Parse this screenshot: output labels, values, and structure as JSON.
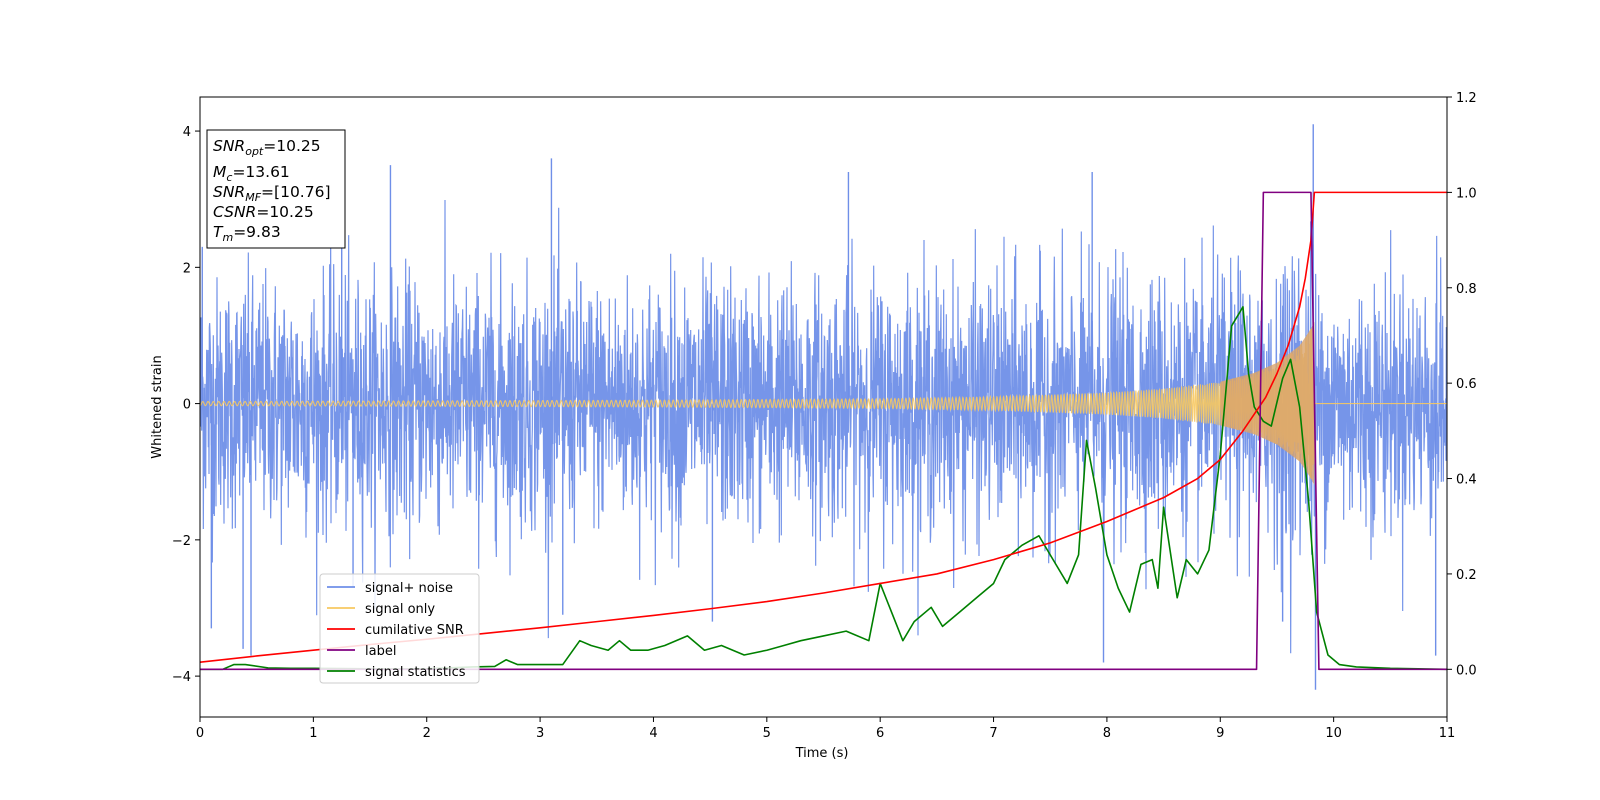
{
  "chart_data": {
    "type": "line",
    "xlabel": "Time (s)",
    "ylabel": "Whitened strain",
    "xlim": [
      0,
      11
    ],
    "ylim_left": [
      -4.6,
      4.5
    ],
    "ylim_right": [
      -0.1,
      1.2
    ],
    "x_ticks": [
      0,
      1,
      2,
      3,
      4,
      5,
      6,
      7,
      8,
      9,
      10,
      11
    ],
    "y_left_ticks": [
      4,
      2,
      0,
      -2,
      -4
    ],
    "y_left_tick_labels": [
      "4",
      "2",
      "0",
      "−2",
      "−4"
    ],
    "y_right_ticks": [
      1.2,
      1.0,
      0.8,
      0.6,
      0.4,
      0.2,
      0.0
    ],
    "y_right_tick_labels": [
      "1.2",
      "1.0",
      "0.8",
      "0.6",
      "0.4",
      "0.2",
      "0.0"
    ],
    "grid": false,
    "legend_position": "lower-left",
    "info_box": [
      {
        "sym": "SNR",
        "sub": "opt",
        "val": "=10.25"
      },
      {
        "sym": "M",
        "sub": "c",
        "val": "=13.61"
      },
      {
        "sym": "SNR",
        "sub": "MF",
        "val": "=[10.76]"
      },
      {
        "sym": "CSNR",
        "sub": "",
        "val": "=10.25"
      },
      {
        "sym": "T",
        "sub": "m",
        "val": "=9.83"
      }
    ],
    "series": [
      {
        "name": "signal+ noise",
        "axis": "left",
        "color": "#6f8fe8",
        "kind": "noise",
        "noise_sigma": 0.9,
        "noise_extremes": [
          [
            0.02,
            2.3
          ],
          [
            0.1,
            -3.3
          ],
          [
            0.38,
            -3.6
          ],
          [
            0.45,
            -3.7
          ],
          [
            1.25,
            2.9
          ],
          [
            1.35,
            -2.7
          ],
          [
            1.68,
            3.5
          ],
          [
            3.1,
            3.6
          ],
          [
            3.2,
            -3.1
          ],
          [
            4.52,
            -3.2
          ],
          [
            5.72,
            3.4
          ],
          [
            7.87,
            3.4
          ],
          [
            7.97,
            -3.8
          ],
          [
            9.55,
            -3.2
          ],
          [
            9.82,
            4.1
          ],
          [
            9.84,
            -4.2
          ],
          [
            10.9,
            -3.7
          ]
        ]
      },
      {
        "name": "signal only",
        "axis": "left",
        "color": "#f7c860",
        "kind": "chirp",
        "t_merger": 9.83,
        "envelope_points": [
          [
            0,
            0.03
          ],
          [
            4,
            0.05
          ],
          [
            6,
            0.07
          ],
          [
            7,
            0.1
          ],
          [
            8,
            0.16
          ],
          [
            8.5,
            0.22
          ],
          [
            9,
            0.32
          ],
          [
            9.3,
            0.45
          ],
          [
            9.5,
            0.6
          ],
          [
            9.7,
            0.85
          ],
          [
            9.8,
            1.1
          ],
          [
            9.83,
            1.2
          ]
        ]
      },
      {
        "name": "cumilative SNR",
        "axis": "right",
        "color": "#ff0000",
        "x": [
          0,
          0.5,
          1,
          1.5,
          2,
          2.5,
          3,
          3.5,
          4,
          4.5,
          5,
          5.5,
          6,
          6.5,
          7,
          7.5,
          8,
          8.5,
          8.8,
          9,
          9.2,
          9.4,
          9.5,
          9.6,
          9.7,
          9.75,
          9.8,
          9.83,
          9.85,
          11
        ],
        "y": [
          0.015,
          0.028,
          0.04,
          0.052,
          0.063,
          0.075,
          0.087,
          0.1,
          0.113,
          0.127,
          0.142,
          0.16,
          0.18,
          0.2,
          0.23,
          0.265,
          0.31,
          0.36,
          0.4,
          0.44,
          0.5,
          0.57,
          0.62,
          0.68,
          0.76,
          0.82,
          0.9,
          1.0,
          1.0,
          1.0
        ]
      },
      {
        "name": "label",
        "axis": "right",
        "color": "#800080",
        "x": [
          0,
          9.32,
          9.38,
          9.8,
          9.87,
          11
        ],
        "y": [
          0.0,
          0.0,
          1.0,
          1.0,
          0.0,
          0.0
        ]
      },
      {
        "name": "signal statistics",
        "axis": "right",
        "color": "#008000",
        "x": [
          0,
          0.2,
          0.3,
          0.4,
          0.6,
          0.8,
          1.0,
          1.5,
          2.0,
          2.4,
          2.6,
          2.7,
          2.8,
          3.0,
          3.2,
          3.35,
          3.45,
          3.6,
          3.7,
          3.8,
          3.95,
          4.1,
          4.3,
          4.45,
          4.6,
          4.8,
          5.0,
          5.15,
          5.3,
          5.5,
          5.7,
          5.9,
          6.0,
          6.1,
          6.2,
          6.3,
          6.45,
          6.55,
          6.7,
          6.85,
          7.0,
          7.1,
          7.25,
          7.4,
          7.5,
          7.65,
          7.75,
          7.82,
          7.9,
          8.0,
          8.1,
          8.2,
          8.3,
          8.4,
          8.45,
          8.5,
          8.62,
          8.7,
          8.8,
          8.9,
          9.0,
          9.1,
          9.2,
          9.25,
          9.3,
          9.38,
          9.45,
          9.55,
          9.62,
          9.7,
          9.78,
          9.85,
          9.95,
          10.05,
          10.2,
          10.5,
          11
        ],
        "y": [
          0.0,
          0.0,
          0.01,
          0.01,
          0.003,
          0.002,
          0.002,
          0.001,
          0.001,
          0.005,
          0.006,
          0.02,
          0.01,
          0.01,
          0.01,
          0.06,
          0.05,
          0.04,
          0.06,
          0.04,
          0.04,
          0.05,
          0.07,
          0.04,
          0.05,
          0.03,
          0.04,
          0.05,
          0.06,
          0.07,
          0.08,
          0.06,
          0.18,
          0.12,
          0.06,
          0.1,
          0.13,
          0.09,
          0.12,
          0.15,
          0.18,
          0.23,
          0.26,
          0.28,
          0.24,
          0.18,
          0.24,
          0.48,
          0.38,
          0.24,
          0.17,
          0.12,
          0.22,
          0.23,
          0.17,
          0.34,
          0.15,
          0.23,
          0.2,
          0.25,
          0.45,
          0.72,
          0.76,
          0.62,
          0.55,
          0.52,
          0.51,
          0.61,
          0.65,
          0.55,
          0.35,
          0.12,
          0.03,
          0.01,
          0.005,
          0.002,
          0.0
        ]
      }
    ]
  }
}
